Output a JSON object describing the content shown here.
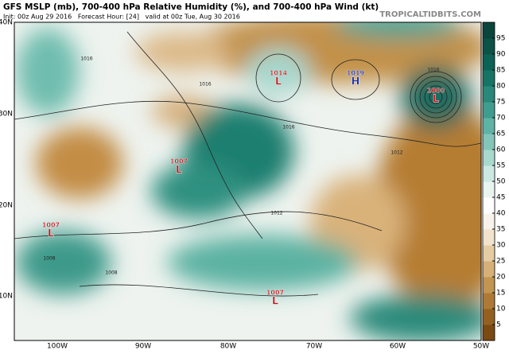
{
  "header": {
    "title": "GFS MSLP (mb), 700-400 hPa Relative Humidity (%), and 700-400 hPa Wind (kt)",
    "subtitle": "Init: 00z Aug 29 2016   Forecast Hour: [24]   valid at 00z Tue, Aug 30 2016",
    "credit": "TROPICALTIDBITS.COM"
  },
  "latitude_labels": [
    "40N",
    "30N",
    "20N",
    "10N"
  ],
  "longitude_labels": [
    "100W",
    "90W",
    "80W",
    "70W",
    "60W",
    "50W"
  ],
  "colorbar": {
    "ticks": [
      5,
      10,
      15,
      20,
      25,
      30,
      35,
      40,
      45,
      50,
      55,
      60,
      65,
      70,
      75,
      80,
      85,
      90,
      95
    ],
    "colors": [
      "#7a4a12",
      "#94601f",
      "#ac7a34",
      "#c29550",
      "#d6b077",
      "#e6cca3",
      "#f1e3cc",
      "#f7f2ea",
      "#ffffff",
      "#e9f4f1",
      "#cce8e2",
      "#a8d8ce",
      "#83c6b9",
      "#5fb3a4",
      "#3f9d8e",
      "#288879",
      "#167465",
      "#0c6255",
      "#0b5247",
      "#0a453c"
    ]
  },
  "pressure_centers": [
    {
      "type": "L",
      "pressure": 1014
    },
    {
      "type": "H",
      "pressure": 1019
    },
    {
      "type": "L",
      "pressure": 1000
    },
    {
      "type": "L",
      "pressure": 1007
    },
    {
      "type": "L",
      "pressure": 1007
    },
    {
      "type": "L",
      "pressure": 1007
    }
  ],
  "isobar_labels": [
    1016,
    1016,
    1016,
    1016,
    1012,
    1008,
    1008,
    1012
  ]
}
